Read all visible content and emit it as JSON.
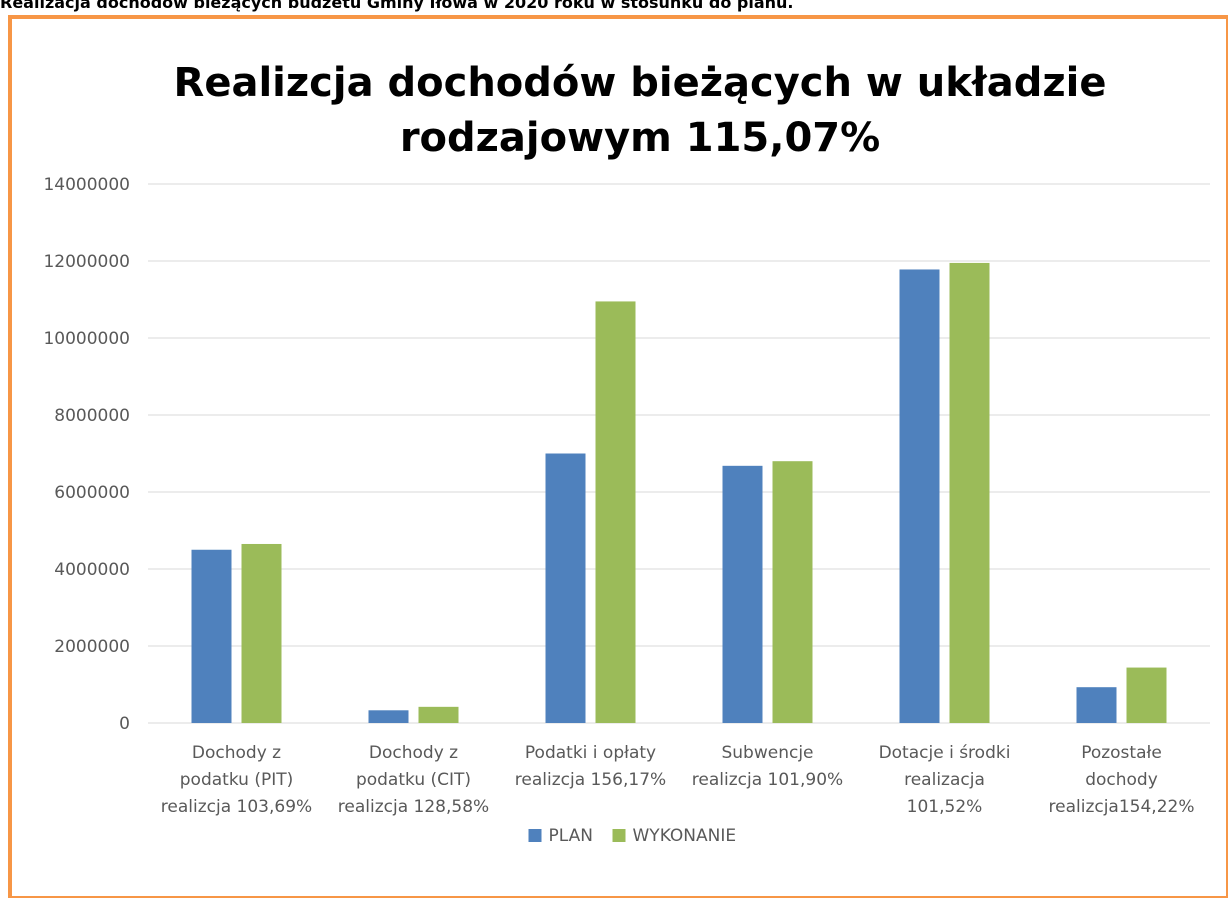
{
  "header": "Realizacja dochodów bieżących budżetu Gminy Iłowa w 2020 roku w stosunku do planu.",
  "chart_data": {
    "type": "bar",
    "title": [
      "Realizcja dochodów bieżących w układzie",
      "rodzajowym 115,07%"
    ],
    "categories": [
      [
        "Dochody z",
        "podatku (PIT)",
        "realizcja 103,69%"
      ],
      [
        "Dochody z",
        "podatku (CIT)",
        "realizcja 128,58%"
      ],
      [
        "Podatki i opłaty",
        "realizcja 156,17%"
      ],
      [
        "Subwencje",
        "realizcja 101,90%"
      ],
      [
        "Dotacje i środki",
        "realizacja",
        "101,52%"
      ],
      [
        "Pozostałe",
        "dochody",
        "realizcja154,22%"
      ]
    ],
    "series": [
      {
        "name": "PLAN",
        "color": "#4f81bd",
        "values": [
          4500000,
          330000,
          7000000,
          6680000,
          11780000,
          930000
        ]
      },
      {
        "name": "WYKONANIE",
        "color": "#9bbb59",
        "values": [
          4650000,
          420000,
          10950000,
          6800000,
          11950000,
          1440000
        ]
      }
    ],
    "ylim": [
      0,
      14000000
    ],
    "yticks": [
      0,
      2000000,
      4000000,
      6000000,
      8000000,
      10000000,
      12000000,
      14000000
    ],
    "grid": true,
    "legend": "bottom"
  }
}
